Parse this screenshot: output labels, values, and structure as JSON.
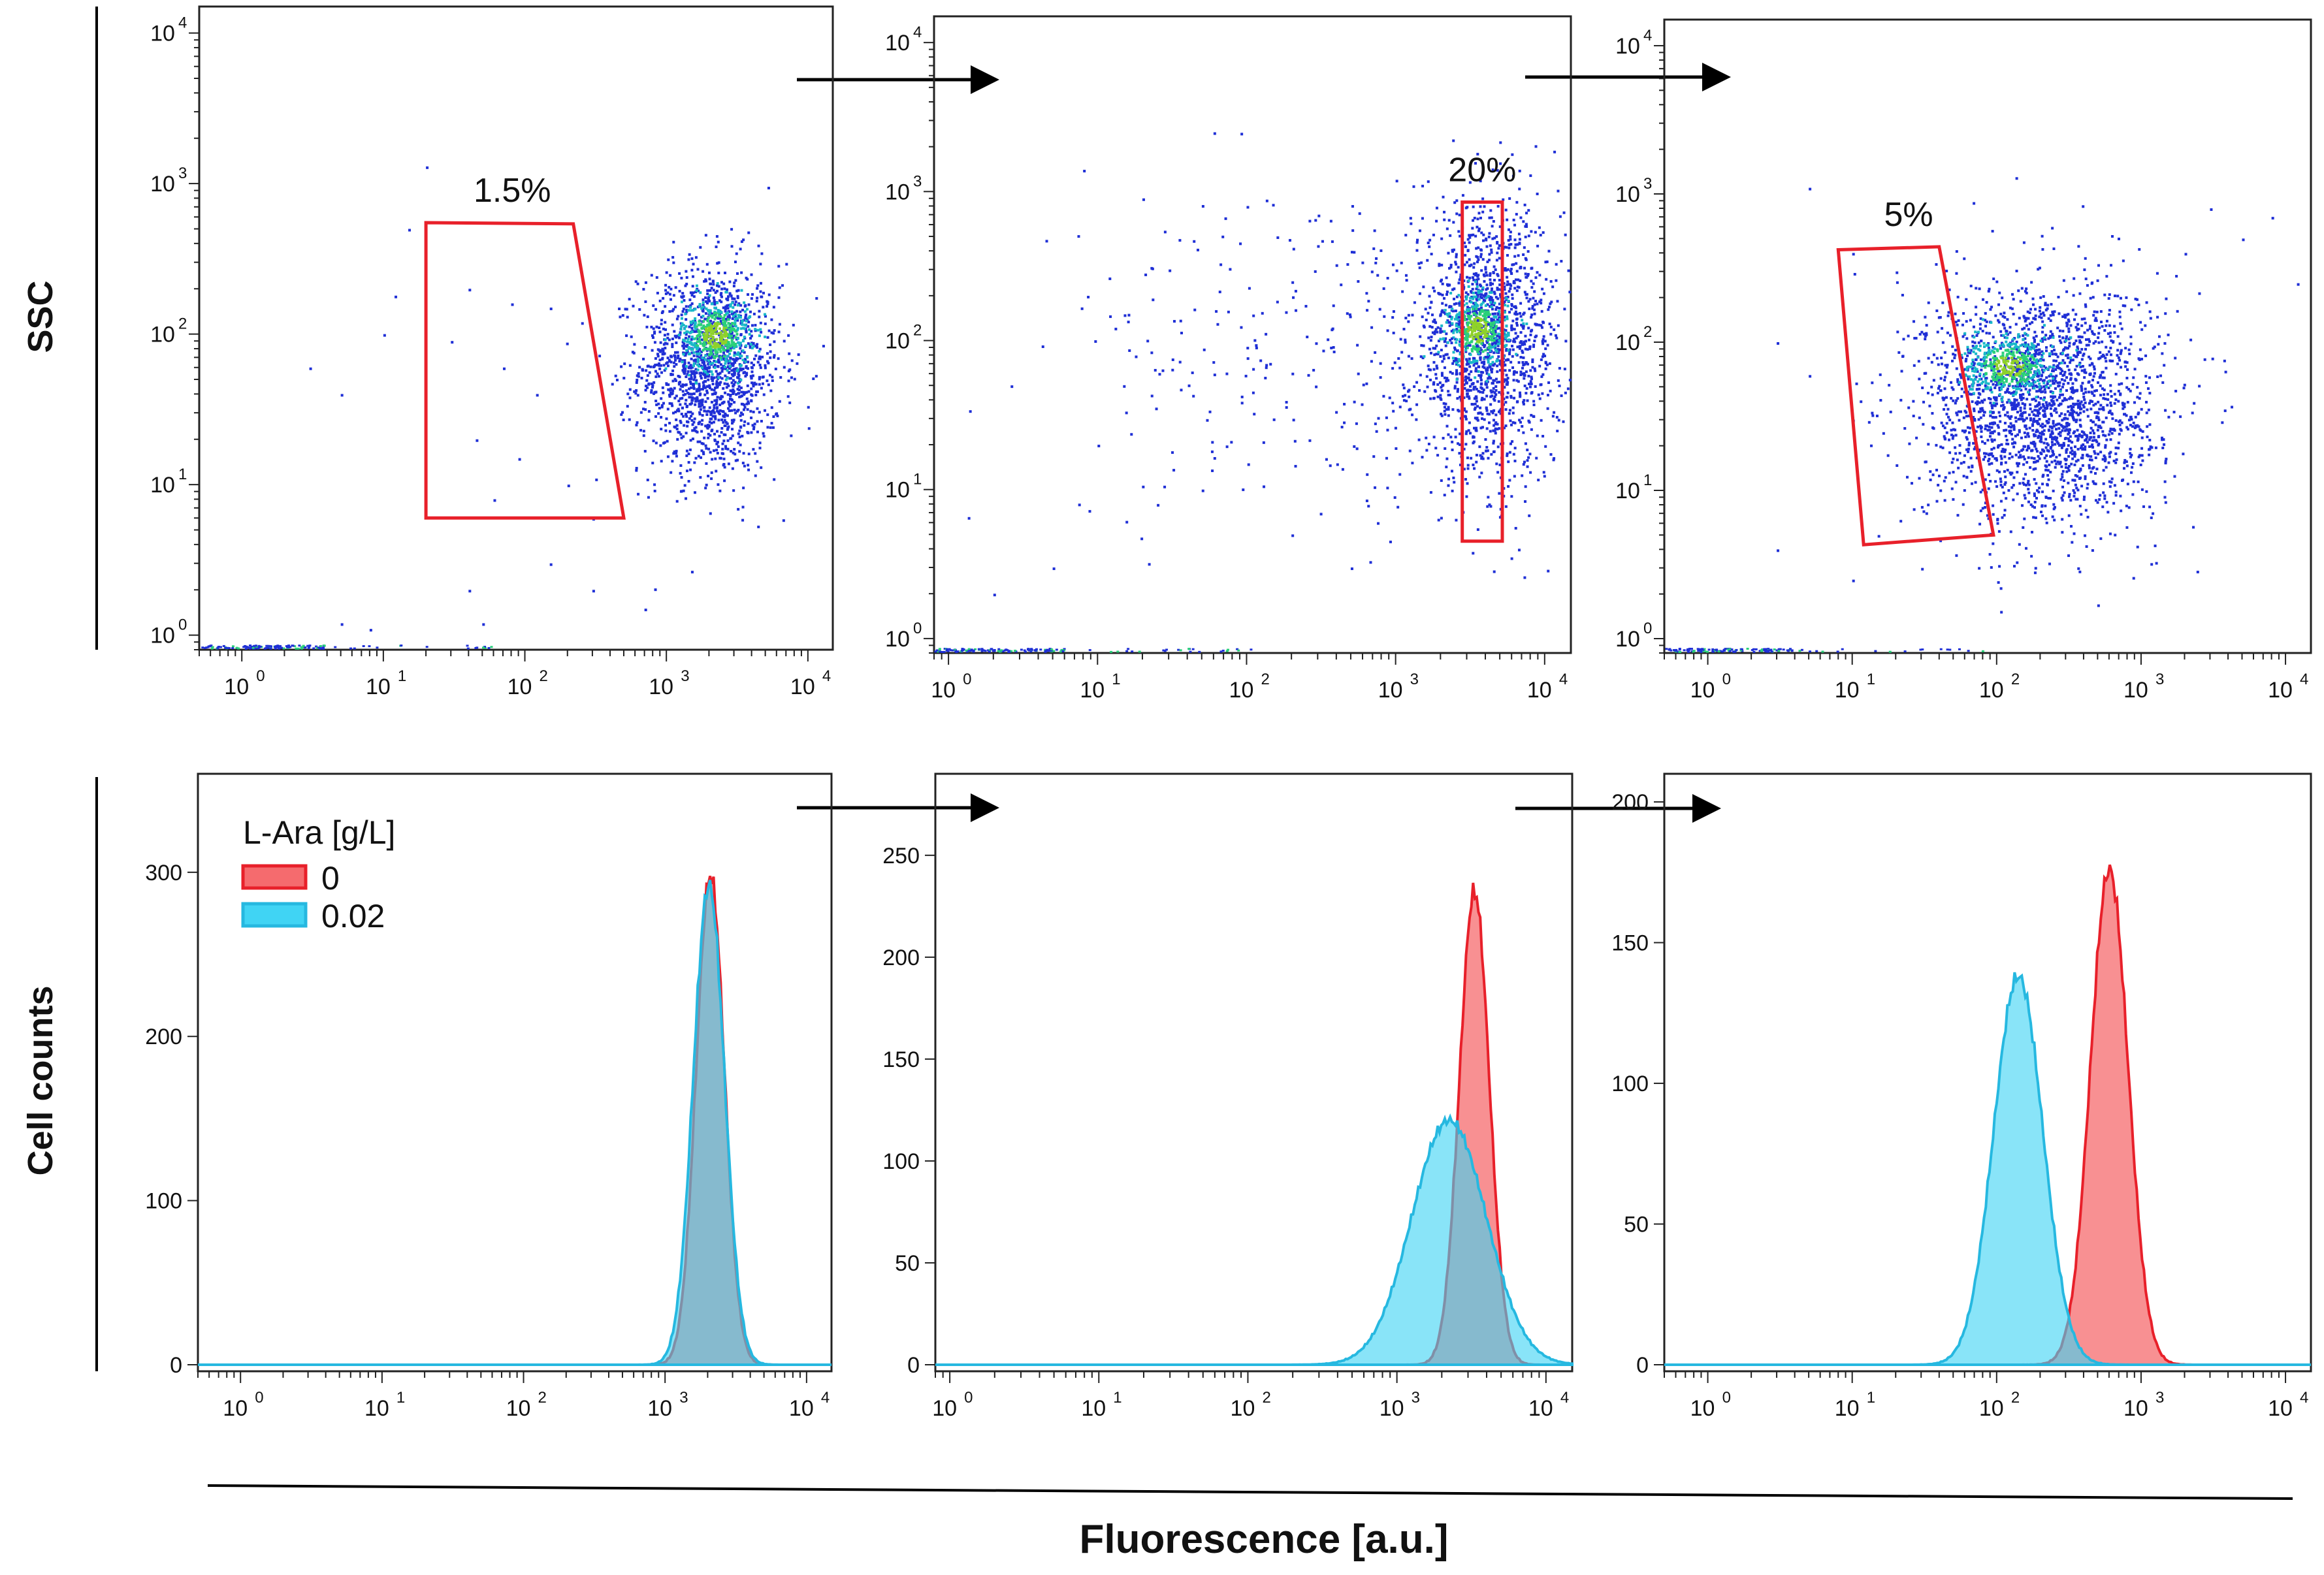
{
  "figure": {
    "y_label_top": "SSC",
    "y_label_bottom": "Cell counts",
    "x_label": "Fluorescence [a.u.]"
  },
  "colors": {
    "gate": "#e8202a",
    "sample_0": "#f56b6e",
    "sample_0_line": "#e8202a",
    "sample_002": "#40d4f4",
    "sample_002_line": "#26b8e0",
    "dots": "#1f2fd6"
  },
  "legend": {
    "title": "L-Ara [g/L]",
    "entries": [
      "0",
      "0.02"
    ]
  },
  "chart_data": [
    {
      "type": "scatter",
      "panel": "top-1",
      "xscale": "log",
      "yscale": "log",
      "xlim": [
        0.5,
        15000
      ],
      "ylim": [
        0.8,
        15000
      ],
      "x_ticks": [
        {
          "base": "10",
          "exp": "0"
        },
        {
          "base": "10",
          "exp": "1"
        },
        {
          "base": "10",
          "exp": "2"
        },
        {
          "base": "10",
          "exp": "3"
        },
        {
          "base": "10",
          "exp": "4"
        }
      ],
      "y_ticks": [
        {
          "base": "10",
          "exp": "0"
        },
        {
          "base": "10",
          "exp": "1"
        },
        {
          "base": "10",
          "exp": "2"
        },
        {
          "base": "10",
          "exp": "3"
        },
        {
          "base": "10",
          "exp": "4"
        }
      ],
      "clusters": [
        {
          "cx": 2000,
          "cy": 60,
          "sx": 0.25,
          "sy": 0.35,
          "n": 1500
        },
        {
          "cx": 2200,
          "cy": 100,
          "sx": 0.12,
          "sy": 0.12,
          "n": 450
        }
      ],
      "sparse_points": [
        [
          20,
          1300
        ],
        [
          15,
          500
        ],
        [
          12,
          180
        ],
        [
          40,
          200
        ],
        [
          80,
          160
        ],
        [
          150,
          150
        ],
        [
          250,
          120
        ],
        [
          10,
          100
        ],
        [
          30,
          90
        ],
        [
          70,
          60
        ],
        [
          120,
          40
        ],
        [
          45,
          20
        ],
        [
          90,
          15
        ],
        [
          200,
          10
        ],
        [
          60,
          8
        ],
        [
          300,
          6
        ],
        [
          150,
          3
        ],
        [
          40,
          2
        ],
        [
          8,
          1.1
        ],
        [
          5,
          1.2
        ],
        [
          50,
          1.2
        ],
        [
          300,
          2
        ],
        [
          700,
          1.5
        ],
        [
          3,
          60
        ],
        [
          5,
          40
        ]
      ],
      "gate": {
        "label": "1.5%",
        "vertices": [
          [
            20,
            550
          ],
          [
            220,
            540
          ],
          [
            500,
            6
          ],
          [
            20,
            6
          ]
        ]
      }
    },
    {
      "type": "scatter",
      "panel": "top-2",
      "xscale": "log",
      "yscale": "log",
      "xlim": [
        0.8,
        15000
      ],
      "ylim": [
        0.8,
        15000
      ],
      "x_ticks": [
        {
          "base": "10",
          "exp": "0"
        },
        {
          "base": "10",
          "exp": "1"
        },
        {
          "base": "10",
          "exp": "2"
        },
        {
          "base": "10",
          "exp": "3"
        },
        {
          "base": "10",
          "exp": "4"
        }
      ],
      "y_ticks": [
        {
          "base": "10",
          "exp": "0"
        },
        {
          "base": "10",
          "exp": "1"
        },
        {
          "base": "10",
          "exp": "2"
        },
        {
          "base": "10",
          "exp": "3"
        },
        {
          "base": "10",
          "exp": "4"
        }
      ],
      "clusters": [
        {
          "cx": 4000,
          "cy": 100,
          "sx": 0.25,
          "sy": 0.45,
          "n": 1500
        },
        {
          "cx": 3500,
          "cy": 120,
          "sx": 0.1,
          "sy": 0.12,
          "n": 400
        },
        {
          "cx": 300,
          "cy": 80,
          "sx": 0.9,
          "sy": 0.55,
          "n": 260
        }
      ],
      "sparse_points": [
        [
          60,
          2500
        ],
        [
          8,
          1400
        ],
        [
          20,
          900
        ],
        [
          100,
          800
        ],
        [
          300,
          700
        ],
        [
          1000,
          1200
        ],
        [
          30,
          300
        ],
        [
          200,
          250
        ],
        [
          500,
          400
        ],
        [
          1000,
          300
        ],
        [
          15,
          150
        ],
        [
          60,
          60
        ],
        [
          150,
          30
        ],
        [
          400,
          15
        ],
        [
          50,
          10
        ],
        [
          200,
          5
        ],
        [
          500,
          3
        ],
        [
          10,
          20
        ],
        [
          25,
          8
        ],
        [
          5,
          3
        ],
        [
          2,
          2
        ]
      ],
      "gate": {
        "label": "20%",
        "vertices": [
          [
            2800,
            850
          ],
          [
            5200,
            850
          ],
          [
            5200,
            4.5
          ],
          [
            2800,
            4.5
          ]
        ]
      }
    },
    {
      "type": "scatter",
      "panel": "top-3",
      "xscale": "log",
      "yscale": "log",
      "xlim": [
        0.5,
        15000
      ],
      "ylim": [
        0.8,
        15000
      ],
      "x_ticks": [
        {
          "base": "10",
          "exp": "0"
        },
        {
          "base": "10",
          "exp": "1"
        },
        {
          "base": "10",
          "exp": "2"
        },
        {
          "base": "10",
          "exp": "3"
        },
        {
          "base": "10",
          "exp": "4"
        }
      ],
      "y_ticks": [
        {
          "base": "10",
          "exp": "0"
        },
        {
          "base": "10",
          "exp": "1"
        },
        {
          "base": "10",
          "exp": "2"
        },
        {
          "base": "10",
          "exp": "3"
        },
        {
          "base": "10",
          "exp": "4"
        }
      ],
      "clusters": [
        {
          "cx": 200,
          "cy": 40,
          "sx": 0.4,
          "sy": 0.4,
          "n": 2200
        },
        {
          "cx": 120,
          "cy": 70,
          "sx": 0.15,
          "sy": 0.1,
          "n": 420
        }
      ],
      "sparse_points": [
        [
          5,
          1100
        ],
        [
          10,
          400
        ],
        [
          20,
          300
        ],
        [
          40,
          150
        ],
        [
          3,
          100
        ],
        [
          5,
          60
        ],
        [
          10,
          30
        ],
        [
          20,
          15
        ],
        [
          15,
          5
        ],
        [
          10,
          2.5
        ],
        [
          3,
          4
        ],
        [
          30,
          3
        ],
        [
          8000,
          700
        ],
        [
          5000,
          500
        ],
        [
          12000,
          250
        ],
        [
          3000,
          800
        ],
        [
          2000,
          400
        ]
      ],
      "gate": {
        "label": "5%",
        "vertices": [
          [
            8,
            420
          ],
          [
            40,
            440
          ],
          [
            95,
            5
          ],
          [
            12,
            4.3
          ]
        ]
      }
    },
    {
      "type": "area",
      "panel": "bottom-1",
      "xscale": "log",
      "xlim": [
        0.5,
        15000
      ],
      "ylim": [
        0,
        360
      ],
      "x_ticks": [
        {
          "base": "10",
          "exp": "0"
        },
        {
          "base": "10",
          "exp": "1"
        },
        {
          "base": "10",
          "exp": "2"
        },
        {
          "base": "10",
          "exp": "3"
        },
        {
          "base": "10",
          "exp": "4"
        }
      ],
      "y_ticks": [
        0,
        100,
        200,
        300
      ],
      "series": [
        {
          "name": "0",
          "mu": 3.32,
          "sigma": 0.1,
          "peak": 298
        },
        {
          "name": "0.02",
          "mu": 3.31,
          "sigma": 0.11,
          "peak": 292
        }
      ]
    },
    {
      "type": "area",
      "panel": "bottom-2",
      "xscale": "log",
      "xlim": [
        0.8,
        15000
      ],
      "ylim": [
        0,
        290
      ],
      "x_ticks": [
        {
          "base": "10",
          "exp": "0"
        },
        {
          "base": "10",
          "exp": "1"
        },
        {
          "base": "10",
          "exp": "2"
        },
        {
          "base": "10",
          "exp": "3"
        },
        {
          "base": "10",
          "exp": "4"
        }
      ],
      "y_ticks": [
        0,
        50,
        100,
        150,
        200,
        250
      ],
      "series": [
        {
          "name": "0",
          "mu": 3.52,
          "sigma": 0.1,
          "peak": 232
        },
        {
          "name": "0.02",
          "mu": 3.35,
          "sigma": 0.25,
          "peak": 120
        }
      ]
    },
    {
      "type": "area",
      "panel": "bottom-3",
      "xscale": "log",
      "xlim": [
        0.5,
        15000
      ],
      "ylim": [
        0,
        210
      ],
      "x_ticks": [
        {
          "base": "10",
          "exp": "0"
        },
        {
          "base": "10",
          "exp": "1"
        },
        {
          "base": "10",
          "exp": "2"
        },
        {
          "base": "10",
          "exp": "3"
        },
        {
          "base": "10",
          "exp": "4"
        }
      ],
      "y_ticks": [
        0,
        50,
        100,
        150,
        200
      ],
      "series": [
        {
          "name": "0",
          "mu": 2.78,
          "sigma": 0.13,
          "peak": 176
        },
        {
          "name": "0.02",
          "mu": 2.15,
          "sigma": 0.17,
          "peak": 138
        }
      ]
    }
  ]
}
